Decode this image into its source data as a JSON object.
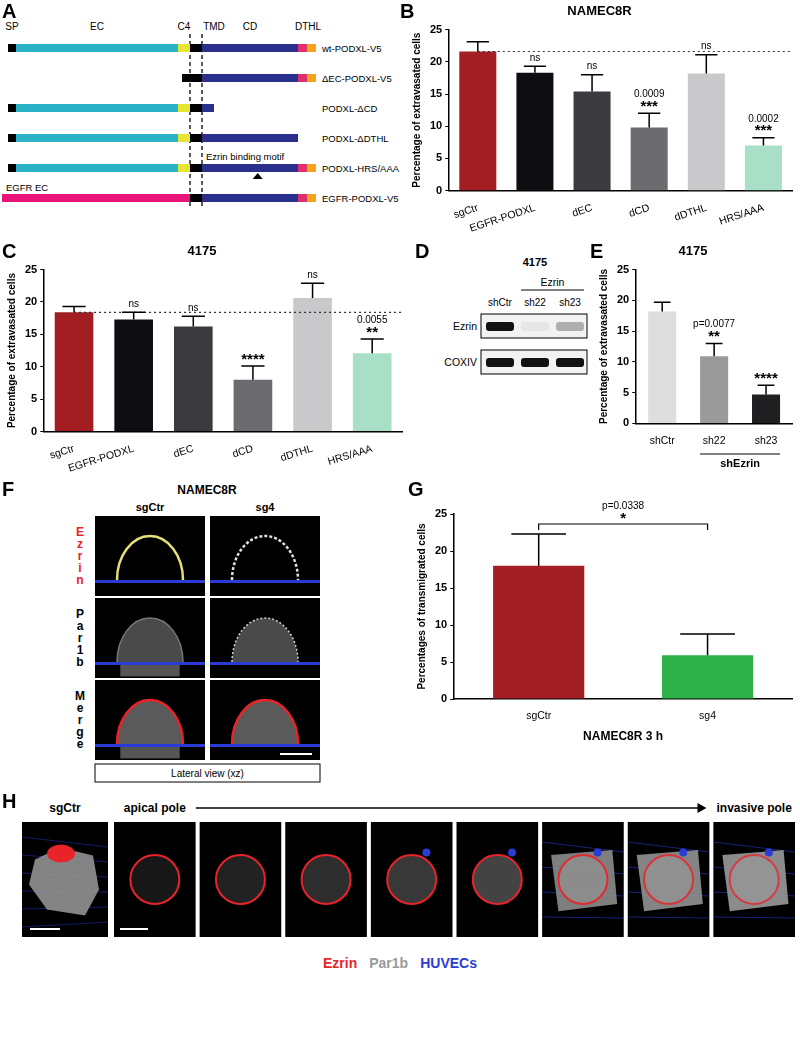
{
  "chart_data": [
    {
      "panel": "B",
      "type": "bar",
      "title": "NAMEC8R",
      "y_label": "Percentage of extravasated cells",
      "categories": [
        "sgCtr",
        "EGFR-PODXL",
        "dEC",
        "dCD",
        "dDTHL",
        "HRS/AAA"
      ],
      "values": [
        21.6,
        18.3,
        15.4,
        9.8,
        18.2,
        7.0
      ],
      "errors": [
        1.5,
        1.0,
        2.6,
        2.2,
        2.9,
        1.2
      ],
      "colors": [
        "#a21e23",
        "#0d0d12",
        "#3b3b3f",
        "#6b6b70",
        "#c9c9cc",
        "#a9dfc6"
      ],
      "ylim": [
        0,
        25
      ],
      "yticks": [
        0,
        5,
        10,
        15,
        20,
        25
      ],
      "grid": false,
      "annotations": [
        null,
        [
          "ns"
        ],
        [
          "ns"
        ],
        [
          "0.0009",
          "***"
        ],
        [
          "ns"
        ],
        [
          "0.0002",
          "***"
        ]
      ],
      "reference_line": 21.6
    },
    {
      "panel": "C",
      "type": "bar",
      "title": "4175",
      "y_label": "Percentage of extravasated cells",
      "categories": [
        "sgCtr",
        "EGFR-PODXL",
        "dEC",
        "dCD",
        "dDTHL",
        "HRS/AAA"
      ],
      "values": [
        18.4,
        17.3,
        16.2,
        8.0,
        20.6,
        12.1
      ],
      "errors": [
        0.9,
        1.1,
        1.6,
        2.1,
        2.3,
        2.2
      ],
      "colors": [
        "#a21e23",
        "#0d0d12",
        "#3b3b3f",
        "#6b6b70",
        "#c9c9cc",
        "#a9dfc6"
      ],
      "ylim": [
        0,
        25
      ],
      "yticks": [
        0,
        5,
        10,
        15,
        20,
        25
      ],
      "grid": false,
      "annotations": [
        null,
        [
          "ns"
        ],
        [
          "ns"
        ],
        [
          "****"
        ],
        [
          "ns"
        ],
        [
          "0.0055",
          "**"
        ]
      ],
      "reference_line": 18.4
    },
    {
      "panel": "E",
      "type": "bar",
      "title": "4175",
      "y_label": "Percentage of extravasated cells",
      "categories": [
        "shCtr",
        "sh22",
        "sh23"
      ],
      "values": [
        18.2,
        10.9,
        4.7
      ],
      "errors": [
        1.5,
        2.1,
        1.5
      ],
      "colors": [
        "#dedede",
        "#9a9a9a",
        "#1f1f22"
      ],
      "ylim": [
        0,
        25
      ],
      "yticks": [
        0,
        5,
        10,
        15,
        20,
        25
      ],
      "grid": false,
      "annotations": [
        null,
        [
          "p=0.0077",
          "**"
        ],
        [
          "****"
        ]
      ],
      "group_label": {
        "text": "shEzrin",
        "from": "sh22",
        "to": "sh23"
      }
    },
    {
      "panel": "G",
      "type": "bar",
      "x_label": "NAMEC8R 3 h",
      "y_label": "Percentages of transmigrated cells",
      "categories": [
        "sgCtr",
        "sg4"
      ],
      "values": [
        18.0,
        5.9
      ],
      "errors": [
        4.3,
        2.9
      ],
      "colors": [
        "#a21e23",
        "#2eb04b"
      ],
      "ylim": [
        0,
        25
      ],
      "yticks": [
        0,
        5,
        10,
        15,
        20,
        25
      ],
      "grid": false,
      "comparison": {
        "texts": [
          "p=0.0338",
          "*"
        ],
        "from": "sgCtr",
        "to": "sg4"
      }
    }
  ],
  "diagram": {
    "panel": "A",
    "domains": [
      "SP",
      "EC",
      "C4",
      "TMD",
      "CD",
      "DTHL"
    ],
    "constructs": [
      {
        "name": "wt-PODXL-V5",
        "parts": [
          "SP",
          "EC",
          "C4",
          "TMD",
          "CD",
          "DTHL"
        ]
      },
      {
        "name": "ΔEC-PODXL-V5",
        "parts": [
          "SP",
          "TMD",
          "CD",
          "DTHL"
        ]
      },
      {
        "name": "PODXL-ΔCD",
        "parts": [
          "SP",
          "EC",
          "C4",
          "TMD"
        ]
      },
      {
        "name": "PODXL-ΔDTHL",
        "parts": [
          "SP",
          "EC",
          "C4",
          "TMD",
          "CD"
        ]
      },
      {
        "name": "PODXL-HRS/AAA",
        "parts": [
          "SP",
          "EC",
          "C4",
          "TMD",
          "CD",
          "DTHL"
        ],
        "annotation": "Ezrin binding motif"
      },
      {
        "name": "EGFR-PODXL-V5",
        "parts": [
          "EGFR EC",
          "TMD",
          "CD",
          "DTHL"
        ]
      }
    ]
  },
  "blot": {
    "panel": "D",
    "title": "4175",
    "lanes": [
      "shCtr",
      "sh22",
      "sh23"
    ],
    "lane_group": {
      "text": "Ezrin",
      "from": "sh22",
      "to": "sh23"
    },
    "rows": [
      {
        "name": "Ezrin",
        "intensity": [
          1,
          0.05,
          0.3
        ]
      },
      {
        "name": "COXIV",
        "intensity": [
          1,
          1,
          1
        ]
      }
    ]
  },
  "microscopy": {
    "panel": "F",
    "title": "NAMEC8R",
    "columns": [
      "sgCtr",
      "sg4"
    ],
    "rows": [
      {
        "label": "Ezrin",
        "color": "#e8232a"
      },
      {
        "label": "Par1b"
      },
      {
        "label": "Merge"
      }
    ],
    "view_label": "Lateral view (xz)"
  },
  "image_series": {
    "panel": "H",
    "reference": "sgCtr",
    "start": "apical pole",
    "end": "invasive pole",
    "sections": 8,
    "legend": [
      {
        "text": "Ezrin",
        "color": "#e8232a"
      },
      {
        "text": "Par1b",
        "color": "#9a9a9a"
      },
      {
        "text": "HUVECs",
        "color": "#2b3bd6"
      }
    ]
  }
}
